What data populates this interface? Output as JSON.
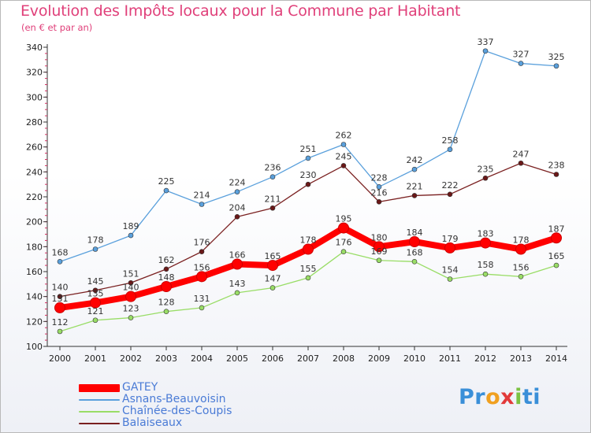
{
  "title": "Evolution des Impôts locaux pour la Commune par Habitant",
  "subtitle": "(en € et par an)",
  "logo": {
    "p1": "Pr",
    "p2": "o",
    "p3": "x",
    "p4": "i",
    "p5": "ti"
  },
  "chart_data": {
    "type": "line",
    "title": "Evolution des Impôts locaux pour la Commune par Habitant",
    "subtitle": "(en € et par an)",
    "xlabel": "",
    "ylabel": "",
    "x": [
      "2000",
      "2001",
      "2002",
      "2003",
      "2004",
      "2005",
      "2006",
      "2007",
      "2008",
      "2009",
      "2010",
      "2011",
      "2012",
      "2013",
      "2014"
    ],
    "ylim": [
      100,
      340
    ],
    "yticks": [
      100,
      120,
      140,
      160,
      180,
      200,
      220,
      240,
      260,
      280,
      300,
      320,
      340
    ],
    "grid": false,
    "legend_position": "bottom-left",
    "series": [
      {
        "name": "GATEY",
        "color": "#ff0000",
        "values": [
          131,
          135,
          140,
          148,
          156,
          166,
          165,
          178,
          195,
          180,
          184,
          179,
          183,
          178,
          187
        ]
      },
      {
        "name": "Asnans-Beauvoisin",
        "color": "#5aa0dc",
        "values": [
          168,
          178,
          189,
          225,
          214,
          224,
          236,
          251,
          262,
          228,
          242,
          258,
          337,
          327,
          325
        ]
      },
      {
        "name": "Chaînée-des-Coupis",
        "color": "#99dd66",
        "values": [
          112,
          121,
          123,
          128,
          131,
          143,
          147,
          155,
          176,
          169,
          168,
          154,
          158,
          156,
          165
        ]
      },
      {
        "name": "Balaiseaux",
        "color": "#7a2020",
        "values": [
          140,
          145,
          151,
          162,
          176,
          204,
          211,
          230,
          245,
          216,
          221,
          222,
          235,
          247,
          238
        ]
      }
    ]
  }
}
